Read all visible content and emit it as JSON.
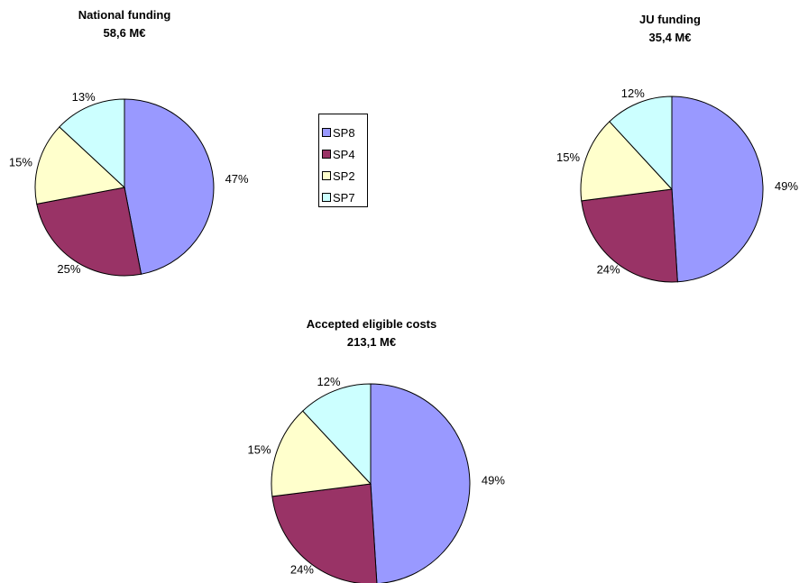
{
  "chart_data": [
    {
      "type": "pie",
      "title": "National funding",
      "subtitle": "58,6 M€",
      "categories": [
        "SP8",
        "SP4",
        "SP2",
        "SP7"
      ],
      "values": [
        47,
        25,
        15,
        13
      ],
      "labels": [
        "47%",
        "25%",
        "15%",
        "13%"
      ]
    },
    {
      "type": "pie",
      "title": "JU funding",
      "subtitle": "35,4 M€",
      "categories": [
        "SP8",
        "SP4",
        "SP2",
        "SP7"
      ],
      "values": [
        49,
        24,
        15,
        12
      ],
      "labels": [
        "49%",
        "24%",
        "15%",
        "12%"
      ]
    },
    {
      "type": "pie",
      "title": "Accepted eligible costs",
      "subtitle": "213,1 M€",
      "categories": [
        "SP8",
        "SP4",
        "SP2",
        "SP7"
      ],
      "values": [
        49,
        24,
        15,
        12
      ],
      "labels": [
        "49%",
        "24%",
        "15%",
        "12%"
      ]
    }
  ],
  "legend": {
    "placement": "center",
    "items": [
      {
        "label": "SP8",
        "color": "#9999ff"
      },
      {
        "label": "SP4",
        "color": "#993366"
      },
      {
        "label": "SP2",
        "color": "#ffffcc"
      },
      {
        "label": "SP7",
        "color": "#ccffff"
      }
    ]
  }
}
